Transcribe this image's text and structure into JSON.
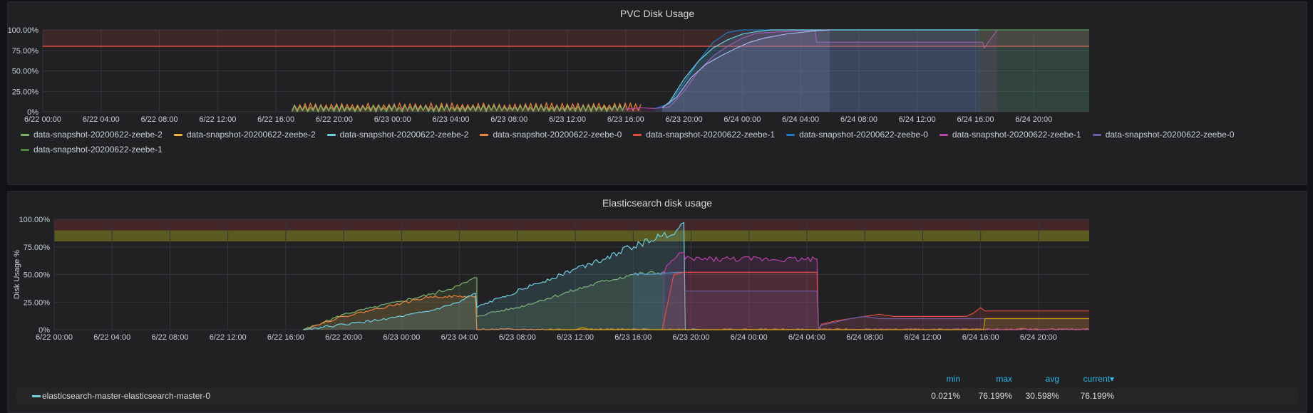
{
  "panels": {
    "pvc": {
      "title": "PVC Disk Usage",
      "legend": [
        {
          "label": "data-snapshot-20200622-zeebe-2",
          "color": "#7eb26d"
        },
        {
          "label": "data-snapshot-20200622-zeebe-2",
          "color": "#eab839"
        },
        {
          "label": "data-snapshot-20200622-zeebe-2",
          "color": "#6ed0e0"
        },
        {
          "label": "data-snapshot-20200622-zeebe-0",
          "color": "#ef843c"
        },
        {
          "label": "data-snapshot-20200622-zeebe-1",
          "color": "#e24d42"
        },
        {
          "label": "data-snapshot-20200622-zeebe-0",
          "color": "#1f78c1"
        },
        {
          "label": "data-snapshot-20200622-zeebe-1",
          "color": "#ba43a9"
        },
        {
          "label": "data-snapshot-20200622-zeebe-0",
          "color": "#705da0"
        },
        {
          "label": "data-snapshot-20200622-zeebe-1",
          "color": "#508642"
        }
      ]
    },
    "es": {
      "title": "Elasticsearch disk usage",
      "table_header": {
        "min": "min",
        "max": "max",
        "avg": "avg",
        "current": "current▾"
      },
      "rows": [
        {
          "name": "elasticsearch-master-elasticsearch-master-0",
          "color": "#6ed0e0",
          "min": "0.021%",
          "max": "76.199%",
          "avg": "30.598%",
          "current": "76.199%"
        }
      ]
    }
  },
  "chart_data": [
    {
      "type": "area",
      "title": "PVC Disk Usage",
      "ylabel": "",
      "xlabel": "",
      "x_ticks": [
        "6/22 00:00",
        "6/22 04:00",
        "6/22 08:00",
        "6/22 12:00",
        "6/22 16:00",
        "6/22 20:00",
        "6/23 00:00",
        "6/23 04:00",
        "6/23 08:00",
        "6/23 12:00",
        "6/23 16:00",
        "6/23 20:00",
        "6/24 00:00",
        "6/24 04:00",
        "6/24 08:00",
        "6/24 12:00",
        "6/24 16:00",
        "6/24 20:00"
      ],
      "y_ticks": [
        "0%",
        "25.00%",
        "50.00%",
        "75.00%",
        "100.00%"
      ],
      "xlim_hours": [
        0,
        71.8
      ],
      "ylim": [
        0,
        100
      ],
      "thresholds": [
        {
          "value": 80,
          "color": "#e24d42"
        }
      ],
      "series": [
        {
          "legend_index": 3,
          "color": "#ef843c",
          "kind": "sawtooth",
          "x": [
            17.1,
            41.2
          ],
          "low": 1,
          "high": 11
        },
        {
          "legend_index": 0,
          "color": "#7eb26d",
          "kind": "sawtooth",
          "x": [
            17.1,
            40.0
          ],
          "low": 0,
          "high": 8
        },
        {
          "legend_index": 6,
          "color": "#ba43a9",
          "x": [
            40,
            41,
            42,
            43,
            44,
            45,
            46,
            47,
            48,
            49,
            53,
            53.1,
            64.5,
            64.6,
            65,
            65.5
          ],
          "y": [
            3,
            5,
            4,
            6,
            25,
            50,
            68,
            80,
            90,
            96,
            100,
            85,
            85,
            78,
            88,
            100
          ]
        },
        {
          "legend_index": 5,
          "color": "#1f78c1",
          "x": [
            42,
            43,
            44,
            45,
            46,
            47,
            48,
            48.7,
            64.3
          ],
          "y": [
            4,
            10,
            35,
            62,
            85,
            97,
            100,
            100,
            100
          ]
        },
        {
          "legend_index": 2,
          "color": "#6ed0e0",
          "x": [
            42.5,
            43,
            44,
            45,
            46,
            47,
            48,
            49,
            50,
            52,
            64.5,
            64.6,
            71.8
          ],
          "y": [
            5,
            12,
            40,
            62,
            78,
            88,
            95,
            98,
            100,
            100,
            100,
            100,
            100
          ]
        },
        {
          "legend_index": 7,
          "color": "#a9b4e8",
          "x": [
            42.5,
            43.5,
            44.5,
            45.5,
            46.5,
            47.5,
            48.5,
            49.5,
            51,
            53,
            54
          ],
          "y": [
            5,
            18,
            42,
            58,
            68,
            77,
            85,
            90,
            95,
            99,
            100
          ]
        },
        {
          "legend_index": 8,
          "color": "#508642",
          "x": [
            64.2,
            65.5,
            71.8
          ],
          "y": [
            100,
            100,
            100
          ]
        }
      ]
    },
    {
      "type": "area",
      "title": "Elasticsearch disk usage",
      "ylabel": "Disk Usage %",
      "xlabel": "",
      "x_ticks": [
        "6/22 00:00",
        "6/22 04:00",
        "6/22 08:00",
        "6/22 12:00",
        "6/22 16:00",
        "6/22 20:00",
        "6/23 00:00",
        "6/23 04:00",
        "6/23 08:00",
        "6/23 12:00",
        "6/23 16:00",
        "6/23 20:00",
        "6/24 00:00",
        "6/24 04:00",
        "6/24 08:00",
        "6/24 12:00",
        "6/24 16:00",
        "6/24 20:00"
      ],
      "y_ticks": [
        "0%",
        "25.00%",
        "50.00%",
        "75.00%",
        "100.00%"
      ],
      "xlim_hours": [
        0,
        71.5
      ],
      "ylim": [
        0,
        100
      ],
      "bands": [
        {
          "from": 90,
          "to": 100,
          "color": "rgba(180,55,50,0.25)"
        },
        {
          "from": 80,
          "to": 90,
          "color": "rgba(160,160,30,0.45)"
        }
      ],
      "series": [
        {
          "color": "#7eb26d",
          "x": [
            17.2,
            18.5,
            20,
            22,
            24,
            26,
            28,
            29.2,
            29.2,
            30,
            32,
            34,
            36,
            38,
            40,
            42.2
          ],
          "y": [
            0,
            6,
            14,
            20,
            26,
            32,
            40,
            47,
            12,
            15,
            20,
            28,
            36,
            44,
            50,
            52
          ],
          "noisy": true
        },
        {
          "color": "#ef843c",
          "x": [
            17.2,
            18.5,
            20,
            22,
            24,
            26,
            27,
            29.1,
            29.2,
            71.5
          ],
          "y": [
            0,
            6,
            12,
            18,
            24,
            30,
            30,
            30,
            0,
            0
          ],
          "noisy": true
        },
        {
          "color": "#6ed0e0",
          "x": [
            17.2,
            19,
            22,
            24,
            26,
            28,
            29.1,
            29.2,
            31,
            33,
            35,
            37,
            39,
            40.5,
            42,
            43,
            43.5,
            43.6,
            44.5
          ],
          "y": [
            0,
            3,
            8,
            12,
            17,
            25,
            33,
            20,
            30,
            40,
            50,
            60,
            70,
            78,
            85,
            90,
            97,
            0,
            0
          ],
          "noisy": true
        },
        {
          "color": "#5195ce",
          "x": [
            40,
            40.5,
            41,
            42,
            43,
            43.5
          ],
          "y": [
            50,
            51,
            50,
            51,
            52,
            52
          ],
          "noisy": false
        },
        {
          "color": "#ba43a9",
          "x": [
            42,
            42.5,
            43,
            43.5,
            43.6,
            52.7,
            52.8,
            71.5
          ],
          "y": [
            52,
            60,
            66,
            70,
            64,
            64,
            0,
            0
          ],
          "noisy": true
        },
        {
          "color": "#e24d42",
          "x": [
            42,
            42.4,
            42.8,
            43.5,
            52.7,
            52.8,
            53,
            54,
            55,
            56,
            57,
            58,
            60,
            63,
            63.5,
            64,
            64.3,
            71.5
          ],
          "y": [
            0,
            25,
            50,
            52,
            52,
            0,
            5,
            8,
            10,
            12,
            14,
            12,
            12,
            12,
            15,
            20,
            17,
            17
          ],
          "noisy": false
        },
        {
          "color": "#705da0",
          "x": [
            43.6,
            52.7,
            52.8,
            53,
            54,
            55,
            56,
            57,
            58,
            71.5
          ],
          "y": [
            35,
            35,
            0,
            4,
            7,
            10,
            12,
            10,
            10,
            10
          ],
          "noisy": false
        },
        {
          "color": "#cca300",
          "x": [
            34,
            36,
            36.5,
            37,
            64.2,
            64.3,
            71.5
          ],
          "y": [
            0,
            0,
            2,
            0,
            0,
            10,
            10
          ],
          "noisy": false
        }
      ]
    }
  ]
}
